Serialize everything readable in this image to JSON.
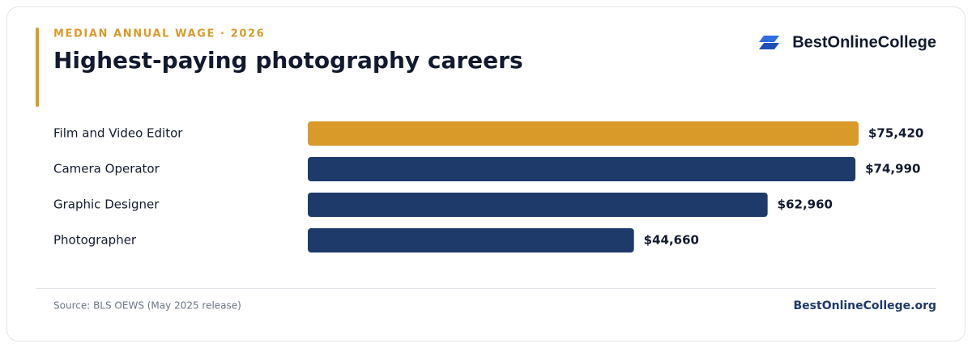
{
  "chart_data": {
    "type": "hbar",
    "kicker": "MEDIAN ANNUAL WAGE · 2026",
    "title": "Highest-paying photography careers",
    "brand": "BestOnlineCollege",
    "categories": [
      "Film and Video Editor",
      "Camera Operator",
      "Graphic Designer",
      "Photographer"
    ],
    "values": [
      75420,
      74990,
      62960,
      44660
    ],
    "value_labels": [
      "$75,420",
      "$74,990",
      "$62,960",
      "$44,660"
    ],
    "colors": [
      "#d99a29",
      "#1e3a6b",
      "#1e3a6b",
      "#1e3a6b"
    ],
    "source": "Source: BLS OEWS (May 2025 release)",
    "footer_link": "BestOnlineCollege.org"
  }
}
